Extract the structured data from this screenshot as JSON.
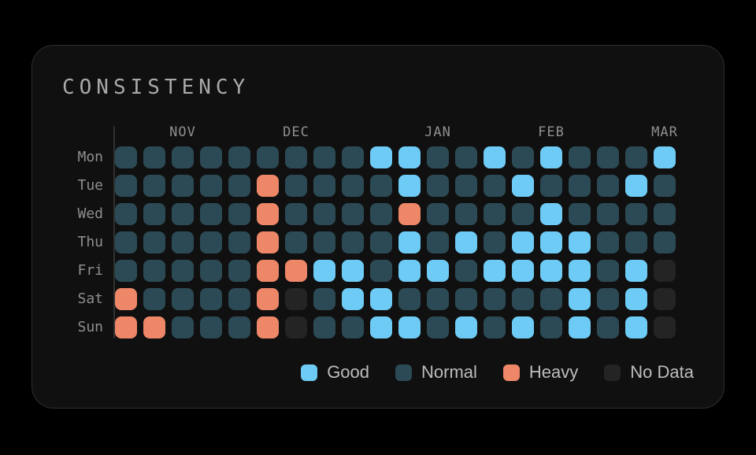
{
  "page": {
    "background": "#000000"
  },
  "card": {
    "title": "CONSISTENCY",
    "background": "#101010",
    "border_color": "#2e2e2e"
  },
  "chart_data": {
    "type": "heatmap",
    "title": "CONSISTENCY",
    "x_axis": {
      "tick_labels": [
        "NOV",
        "DEC",
        "JAN",
        "FEB",
        "MAR"
      ],
      "tick_columns": [
        3,
        7,
        12,
        16,
        20
      ],
      "total_columns": 20
    },
    "y_axis": {
      "tick_labels": [
        "Mon",
        "Tue",
        "Wed",
        "Thu",
        "Fri",
        "Sat",
        "Sun"
      ]
    },
    "cell_colors": {
      "good": "#6ecbf5",
      "normal": "#2c4a55",
      "heavy": "#ee8768",
      "nodata": "#242424"
    },
    "code_map": {
      "G": "good",
      "N": "normal",
      "H": "heavy",
      "X": "nodata"
    },
    "rows": [
      {
        "day": "Mon",
        "cells": "NNNNNNNNNGGNNGNGNNNG"
      },
      {
        "day": "Tue",
        "cells": "NNNNNHNNNNGNNNGNNNGN"
      },
      {
        "day": "Wed",
        "cells": "NNNNNHNNNNHNNNNGNNNN"
      },
      {
        "day": "Thu",
        "cells": "NNNNNHNNNNGNGNGGGNNN"
      },
      {
        "day": "Fri",
        "cells": "NNNNNHHGGNGGNGGGGNGX"
      },
      {
        "day": "Sat",
        "cells": "HNNNNHXNGGNNNNNNGNGX"
      },
      {
        "day": "Sun",
        "cells": "HHNNNHXNNGGNGNGNGNGX"
      }
    ],
    "legend": {
      "position": "bottom-right",
      "entries": [
        {
          "label": "Good",
          "key": "good",
          "color": "#6ecbf5"
        },
        {
          "label": "Normal",
          "key": "normal",
          "color": "#2c4a55"
        },
        {
          "label": "Heavy",
          "key": "heavy",
          "color": "#ee8768"
        },
        {
          "label": "No Data",
          "key": "nodata",
          "color": "#242424"
        }
      ]
    }
  }
}
